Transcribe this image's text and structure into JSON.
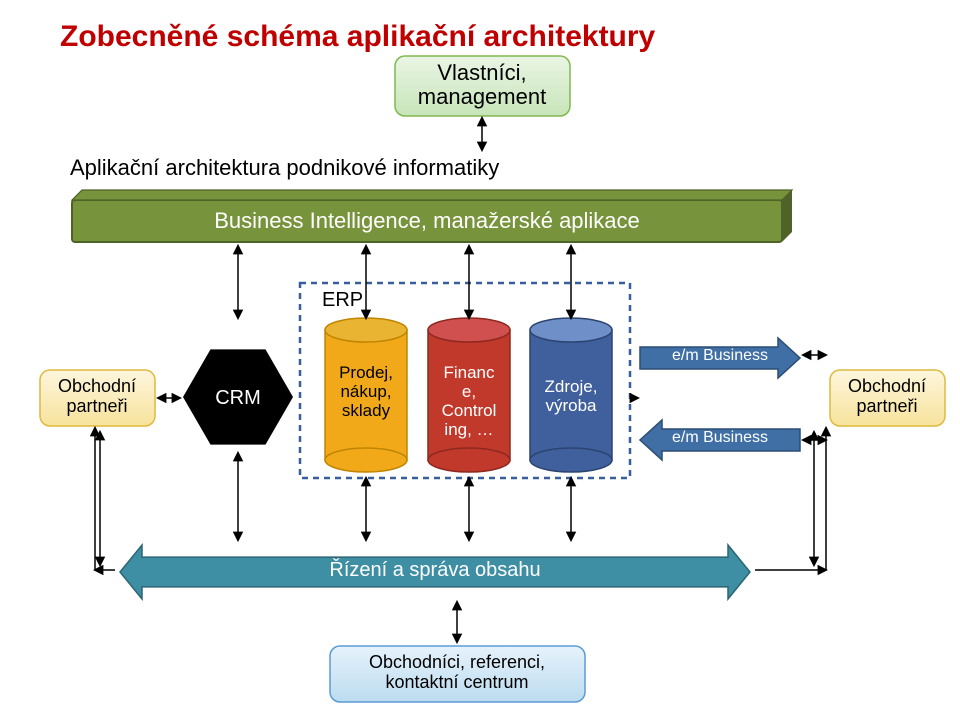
{
  "title": {
    "text": "Zobecněné schéma aplikační architektury",
    "color": "#c00000",
    "fontsize": 30,
    "fontweight": "bold"
  },
  "owners_box": {
    "text": "Vlastníci,\nmanagement",
    "fill_top": "#eaf5e5",
    "fill_bottom": "#c7e5b8",
    "stroke": "#7fb94e",
    "text_color": "#000000",
    "fontsize": 22
  },
  "subtitle": {
    "text": "Aplikační architektura podnikové informatiky",
    "color": "#000000",
    "fontsize": 22
  },
  "bi_bar": {
    "text": "Business Intelligence, manažerské aplikace",
    "fill": "#77933c",
    "stroke": "#4f6228",
    "text_color": "#ffffff",
    "fontsize": 22
  },
  "erp_box": {
    "label": "ERP",
    "stroke": "#385e9d",
    "dash": "6 5",
    "fontsize": 20
  },
  "cylinders": [
    {
      "label": "Prodej,\nnákup,\nsklady",
      "top": "#e9b431",
      "body": "#f1a91a",
      "stroke": "#c08500",
      "text": "#000000"
    },
    {
      "label": "Financ\ne,\nControl\ning, …",
      "top": "#d05050",
      "body": "#c0392b",
      "stroke": "#8e2820",
      "text": "#ffffff"
    },
    {
      "label": "Zdroje,\nvýroba",
      "top": "#6f8fc8",
      "body": "#3f5f9d",
      "stroke": "#2c4470",
      "text": "#ffffff"
    }
  ],
  "cyl_fontsize": 17,
  "hexagon": {
    "label": "CRM",
    "fill": "#000000",
    "text": "#ffffff",
    "fontsize": 20
  },
  "partners_left": {
    "text": "Obchodní\npartneři",
    "fill_top": "#fdf6dd",
    "fill_bottom": "#f7e39c",
    "stroke": "#e0b93e",
    "text_color": "#000000",
    "fontsize": 18
  },
  "partners_right": {
    "text": "Obchodní\npartneři",
    "fill_top": "#fdf6dd",
    "fill_bottom": "#f7e39c",
    "stroke": "#e0b93e",
    "text_color": "#000000",
    "fontsize": 18
  },
  "em_business": {
    "text": "e/m Business",
    "fill": "#3f6fa4",
    "stroke": "#2c4d74",
    "text_color": "#ffffff",
    "fontsize": 16
  },
  "content_mgmt": {
    "text": "Řízení a správa obsahu",
    "fill": "#3f8fa4",
    "stroke": "#2c6574",
    "text_color": "#ffffff",
    "fontsize": 20
  },
  "sales_box": {
    "text": "Obchodníci, referenci,\nkontaktní centrum",
    "fill_top": "#e6f2fb",
    "fill_bottom": "#bcdcf0",
    "stroke": "#5b9bd5",
    "text_color": "#000000",
    "fontsize": 18
  },
  "arrow": {
    "stroke": "#000000",
    "width": 1.5
  },
  "background": "#ffffff"
}
